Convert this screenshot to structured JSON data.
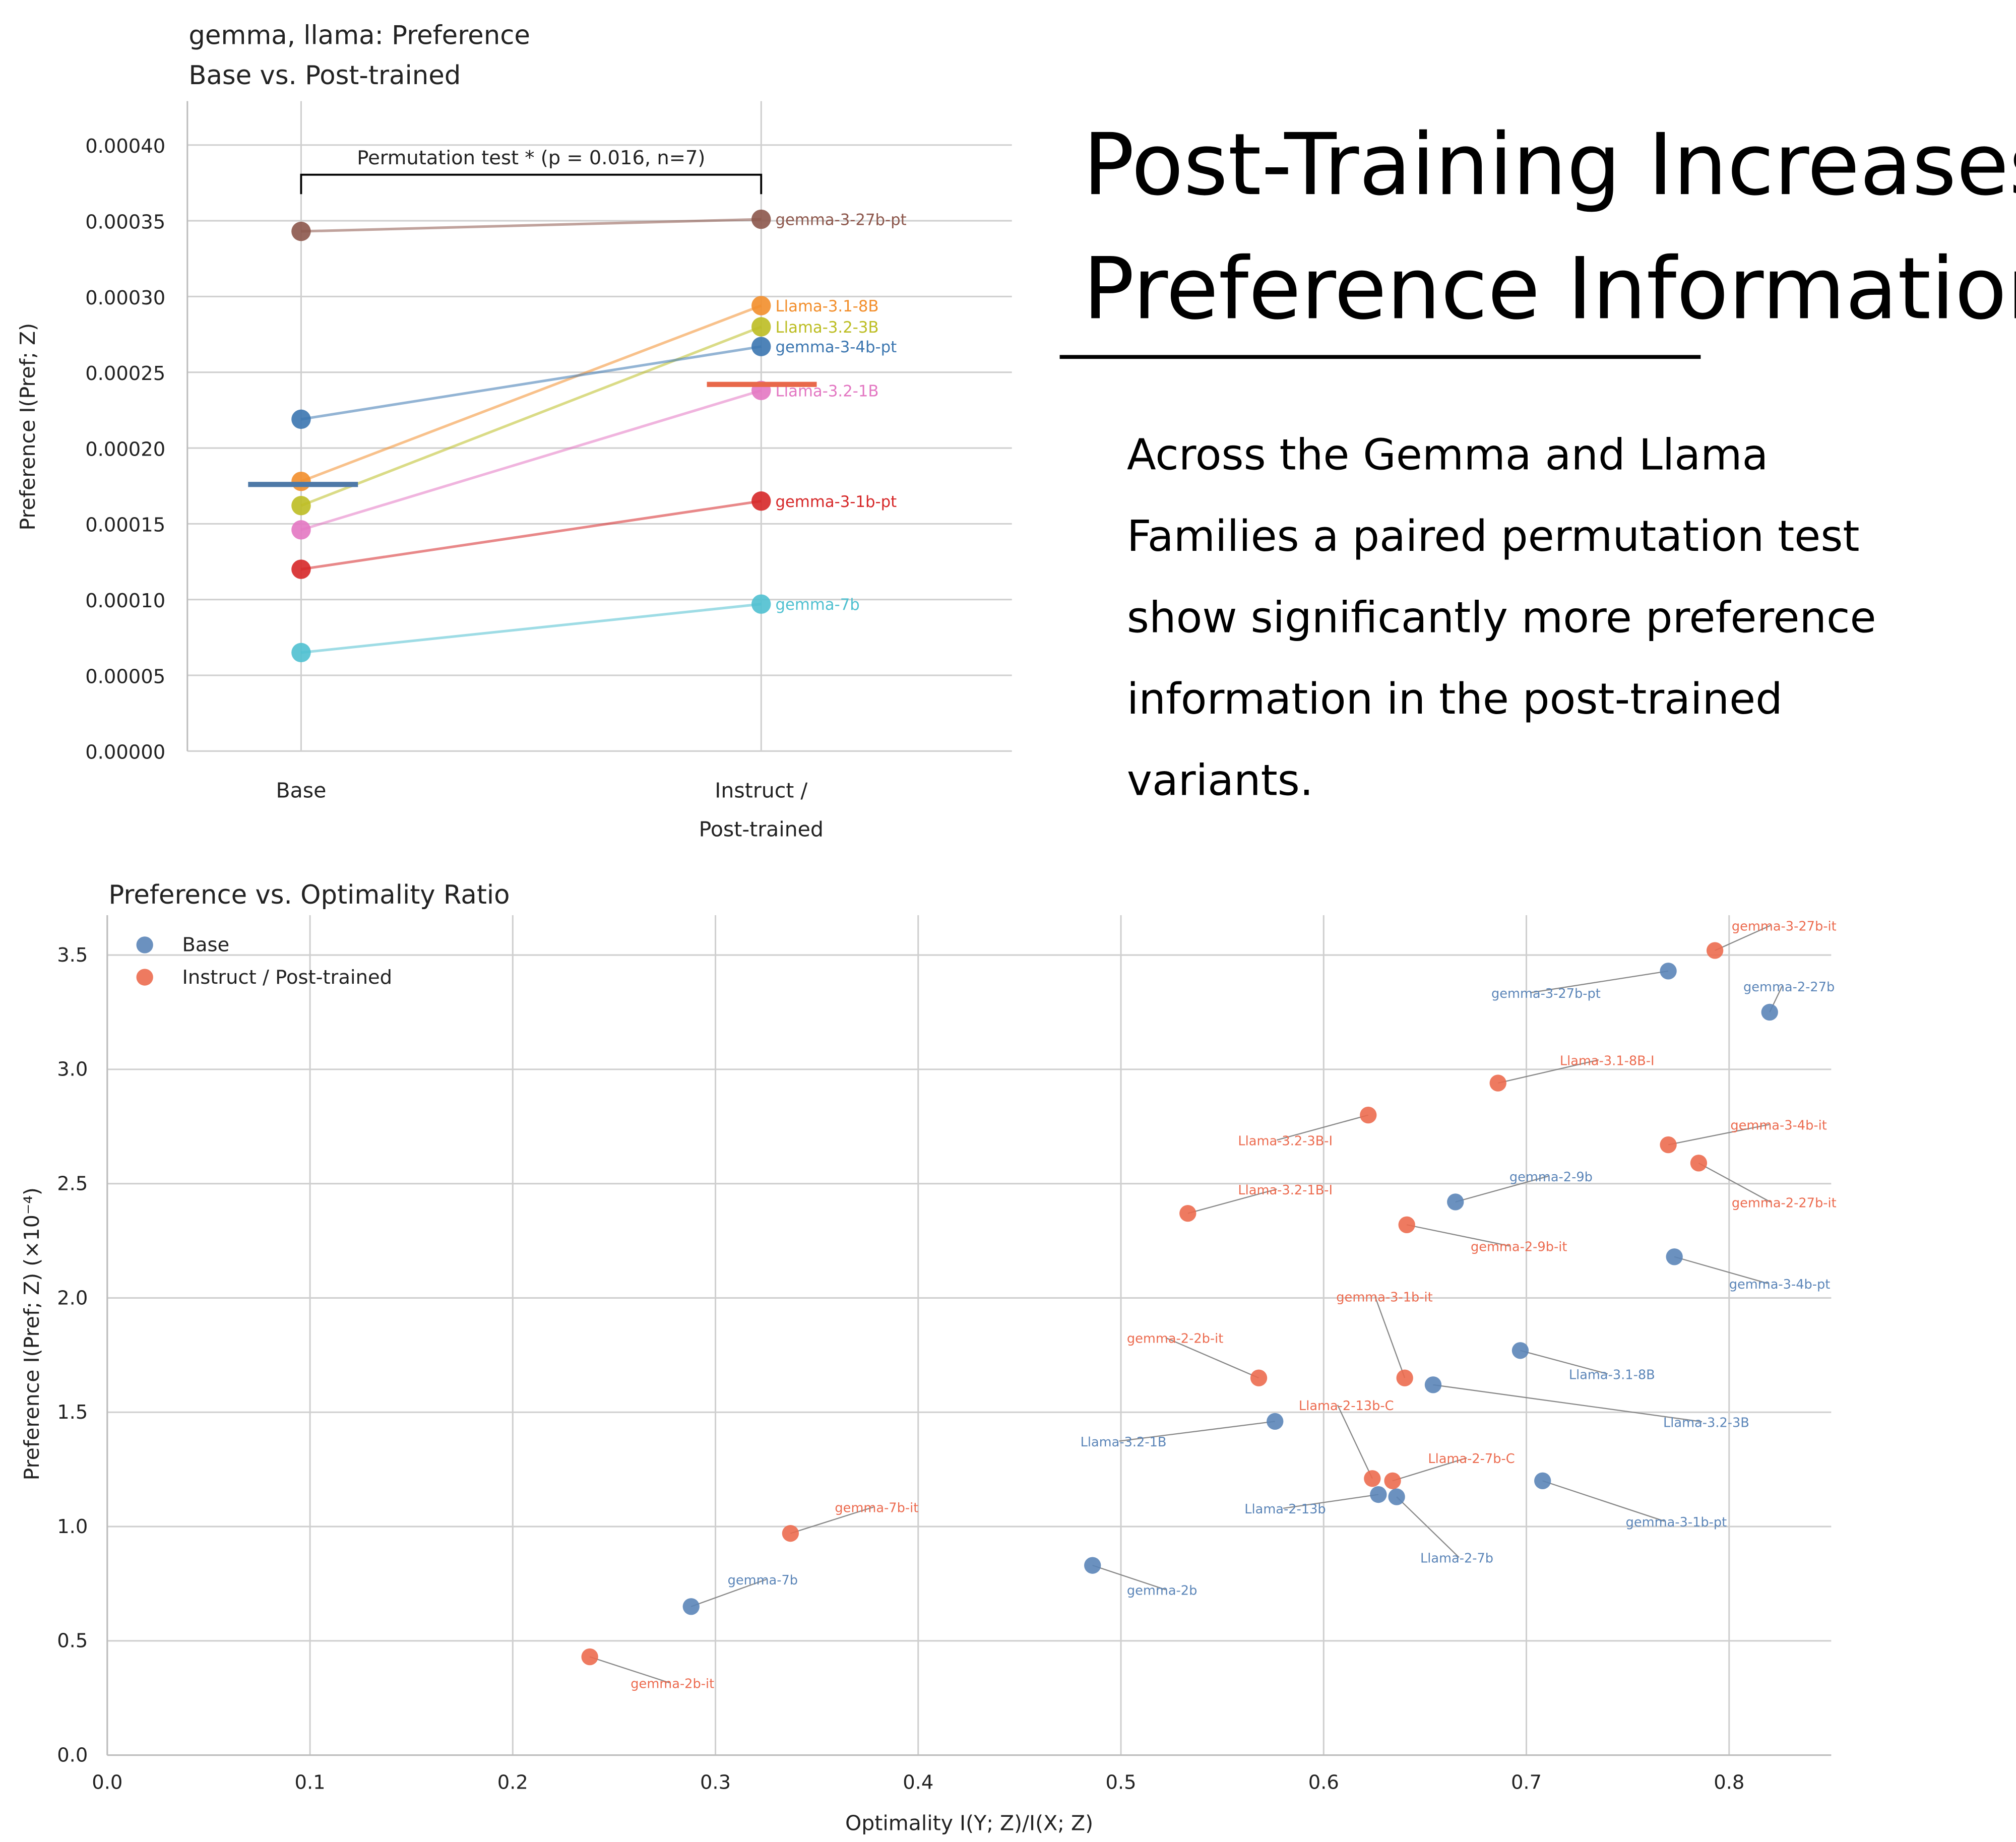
{
  "headline": {
    "title_lines": [
      "Post-Training Increases",
      "Preference Information"
    ],
    "body_lines": [
      "Across the Gemma and Llama",
      "Families a paired permutation test",
      "show significantly more preference",
      "information in the post-trained",
      "variants."
    ]
  },
  "chart_data": [
    {
      "type": "line",
      "title_lines": [
        "gemma, llama: Preference",
        "Base vs. Post-trained"
      ],
      "ylabel": "Preference I(Pref; Z)",
      "categories": [
        "Base",
        "Instruct / Post-trained"
      ],
      "category_label_lines": [
        [
          "Base"
        ],
        [
          "Instruct /",
          "Post-trained"
        ]
      ],
      "ylim": [
        0,
        0.00043
      ],
      "yticks": [
        "0.00000",
        "0.00005",
        "0.00010",
        "0.00015",
        "0.00020",
        "0.00025",
        "0.00030",
        "0.00035",
        "0.00040"
      ],
      "ytick_values": [
        0,
        5e-05,
        0.0001,
        0.00015,
        0.0002,
        0.00025,
        0.0003,
        0.00035,
        0.0004
      ],
      "annotation": "Permutation test * (p = 0.016, n=7)",
      "means": {
        "base": 0.000176,
        "post": 0.000242,
        "base_color": "#4e79a7",
        "post_color": "#e8684a"
      },
      "series": [
        {
          "name": "gemma-3-27b-pt",
          "values": [
            0.000343,
            0.000351
          ],
          "color": "#8c564b"
        },
        {
          "name": "Llama-3.1-8B",
          "values": [
            0.000178,
            0.000294
          ],
          "color": "#f28e2b"
        },
        {
          "name": "Llama-3.2-3B",
          "values": [
            0.000162,
            0.00028
          ],
          "color": "#bcbd22"
        },
        {
          "name": "gemma-3-4b-pt",
          "values": [
            0.000219,
            0.000267
          ],
          "color": "#3b76b0"
        },
        {
          "name": "Llama-3.2-1B",
          "values": [
            0.000146,
            0.000238
          ],
          "color": "#e377c2"
        },
        {
          "name": "gemma-3-1b-pt",
          "values": [
            0.00012,
            0.000165
          ],
          "color": "#d62728"
        },
        {
          "name": "gemma-7b",
          "values": [
            6.5e-05,
            9.7e-05
          ],
          "color": "#4fc0d0"
        }
      ]
    },
    {
      "type": "scatter",
      "title": "Preference vs. Optimality Ratio",
      "xlabel": "Optimality I(Y; Z)/I(X; Z)",
      "ylabel": "Preference I(Pref; Z) (×10⁻⁴)",
      "xlim": [
        0,
        0.85
      ],
      "ylim": [
        0,
        3.67
      ],
      "xticks": [
        "0.0",
        "0.1",
        "0.2",
        "0.3",
        "0.4",
        "0.5",
        "0.6",
        "0.7",
        "0.8"
      ],
      "yticks": [
        "0.0",
        "0.5",
        "1.0",
        "1.5",
        "2.0",
        "2.5",
        "3.0",
        "3.5"
      ],
      "legend": {
        "position": "top-left",
        "entries": [
          {
            "label": "Base",
            "color": "#5b85b8"
          },
          {
            "label": "Instruct / Post-trained",
            "color": "#ec6b4f"
          }
        ]
      },
      "series": [
        {
          "name": "Base",
          "color": "#5b85b8",
          "points": [
            {
              "label": "gemma-3-27b-pt",
              "x": 0.77,
              "y": 3.43
            },
            {
              "label": "gemma-2-27b",
              "x": 0.82,
              "y": 3.25
            },
            {
              "label": "gemma-2-9b",
              "x": 0.665,
              "y": 2.42
            },
            {
              "label": "gemma-3-4b-pt",
              "x": 0.773,
              "y": 2.18
            },
            {
              "label": "Llama-3.1-8B",
              "x": 0.697,
              "y": 1.77
            },
            {
              "label": "Llama-3.2-3B",
              "x": 0.654,
              "y": 1.62
            },
            {
              "label": "Llama-3.2-1B",
              "x": 0.576,
              "y": 1.46
            },
            {
              "label": "Llama-2-13b",
              "x": 0.627,
              "y": 1.14
            },
            {
              "label": "Llama-2-7b",
              "x": 0.636,
              "y": 1.13
            },
            {
              "label": "gemma-3-1b-pt",
              "x": 0.708,
              "y": 1.2
            },
            {
              "label": "gemma-2b",
              "x": 0.486,
              "y": 0.83
            },
            {
              "label": "gemma-7b",
              "x": 0.288,
              "y": 0.65
            }
          ]
        },
        {
          "name": "Instruct / Post-trained",
          "color": "#ec6b4f",
          "points": [
            {
              "label": "gemma-3-27b-it",
              "x": 0.793,
              "y": 3.52
            },
            {
              "label": "Llama-3.1-8B-I",
              "x": 0.686,
              "y": 2.94
            },
            {
              "label": "Llama-3.2-3B-I",
              "x": 0.622,
              "y": 2.8
            },
            {
              "label": "gemma-3-4b-it",
              "x": 0.77,
              "y": 2.67
            },
            {
              "label": "gemma-2-27b-it",
              "x": 0.785,
              "y": 2.59
            },
            {
              "label": "Llama-3.2-1B-I",
              "x": 0.533,
              "y": 2.37
            },
            {
              "label": "gemma-2-9b-it",
              "x": 0.641,
              "y": 2.32
            },
            {
              "label": "gemma-3-1b-it",
              "x": 0.64,
              "y": 1.65
            },
            {
              "label": "gemma-2-2b-it",
              "x": 0.568,
              "y": 1.65
            },
            {
              "label": "Llama-2-13b-C",
              "x": 0.624,
              "y": 1.21
            },
            {
              "label": "Llama-2-7b-C",
              "x": 0.634,
              "y": 1.2
            },
            {
              "label": "gemma-7b-it",
              "x": 0.337,
              "y": 0.97
            },
            {
              "label": "gemma-2b-it",
              "x": 0.238,
              "y": 0.43
            }
          ]
        }
      ]
    }
  ]
}
